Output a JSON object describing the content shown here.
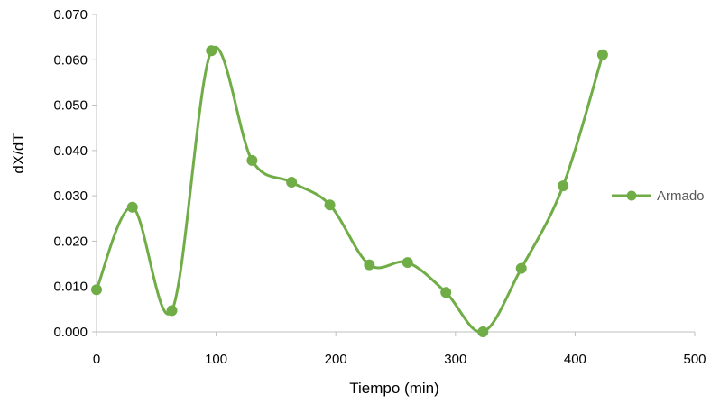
{
  "chart_data": {
    "type": "line",
    "title": "",
    "xlabel": "Tiempo (min)",
    "ylabel": "dX/dT",
    "xlim": [
      0,
      500
    ],
    "ylim": [
      0,
      0.07
    ],
    "x_ticks": [
      0,
      100,
      200,
      300,
      400,
      500
    ],
    "x_tick_labels": [
      "0",
      "100",
      "200",
      "300",
      "400",
      "500"
    ],
    "y_ticks": [
      0,
      0.01,
      0.02,
      0.03,
      0.04,
      0.05,
      0.06,
      0.07
    ],
    "y_tick_labels": [
      "0.000",
      "0.010",
      "0.020",
      "0.030",
      "0.040",
      "0.050",
      "0.060",
      "0.070"
    ],
    "grid": false,
    "smooth": true,
    "legend_position": "right",
    "series": [
      {
        "name": "Armado",
        "color": "#70ad47",
        "x": [
          0,
          30,
          63,
          96,
          130,
          163,
          195,
          228,
          260,
          292,
          323,
          355,
          390,
          423
        ],
        "y": [
          0.0093,
          0.0275,
          0.0047,
          0.062,
          0.0378,
          0.033,
          0.028,
          0.0148,
          0.0153,
          0.0087,
          0.0,
          0.014,
          0.0322,
          0.0611
        ]
      }
    ]
  }
}
